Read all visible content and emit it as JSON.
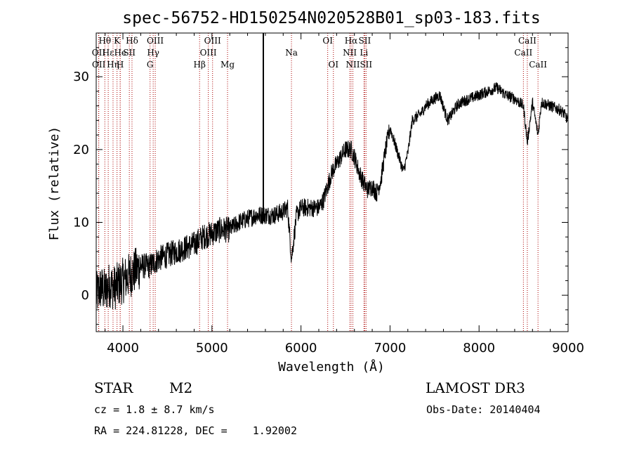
{
  "chart_data": {
    "type": "line",
    "title": "spec-56752-HD150254N020528B01_sp03-183.fits",
    "xlabel": "Wavelength (Å)",
    "ylabel": "Flux (relative)",
    "xlim": [
      3700,
      9000
    ],
    "ylim": [
      -5,
      36
    ],
    "xticks": [
      4000,
      5000,
      6000,
      7000,
      8000,
      9000
    ],
    "xtick_labels": [
      "4000",
      "5000",
      "6000",
      "7000",
      "8000",
      "9000"
    ],
    "yticks": [
      0,
      10,
      20,
      30
    ],
    "ytick_labels": [
      "0",
      "10",
      "20",
      "30"
    ],
    "grid": false,
    "series": [
      {
        "name": "spectrum",
        "color": "#000000",
        "x": [
          3700,
          3750,
          3800,
          3850,
          3900,
          3950,
          4000,
          4100,
          4200,
          4300,
          4400,
          4500,
          4600,
          4700,
          4800,
          4900,
          5000,
          5100,
          5200,
          5300,
          5400,
          5500,
          5600,
          5700,
          5800,
          5850,
          5893,
          5950,
          6000,
          6100,
          6200,
          6250,
          6300,
          6350,
          6400,
          6450,
          6500,
          6563,
          6600,
          6650,
          6700,
          6750,
          6800,
          6850,
          6900,
          6950,
          7000,
          7050,
          7100,
          7150,
          7200,
          7250,
          7300,
          7350,
          7400,
          7500,
          7560,
          7620,
          7650,
          7700,
          7750,
          7800,
          7900,
          8000,
          8100,
          8200,
          8300,
          8400,
          8498,
          8542,
          8600,
          8662,
          8700,
          8800,
          8900,
          8950,
          9000
        ],
        "values": [
          0,
          1,
          0.5,
          1.5,
          1,
          1.5,
          2,
          3,
          4,
          4,
          5,
          5.5,
          6,
          6.5,
          7,
          8,
          8.5,
          9,
          9,
          10,
          10.5,
          11,
          11,
          11,
          11.5,
          12,
          5,
          11,
          12,
          12,
          12,
          13,
          15,
          17,
          18,
          19,
          20,
          20,
          19,
          17,
          15.5,
          14.5,
          15,
          14,
          16,
          20,
          23,
          21,
          19,
          17,
          19.5,
          24,
          24.5,
          25,
          26,
          27,
          27.5,
          25,
          24,
          25,
          26,
          26.5,
          27,
          27.5,
          28,
          28.5,
          27.5,
          27,
          26,
          21,
          26.5,
          22,
          26.5,
          26,
          25.5,
          25,
          24
        ]
      }
    ],
    "lines": [
      {
        "label": "Hθ",
        "wavelength": 3797,
        "row": 1
      },
      {
        "label": "OII",
        "wavelength": 3727,
        "row": 2
      },
      {
        "label": "OII",
        "wavelength": 3729,
        "row": 3
      },
      {
        "label": "Hε",
        "wavelength": 3835,
        "row": 2
      },
      {
        "label": "Hη",
        "wavelength": 3889,
        "row": 3
      },
      {
        "label": "K",
        "wavelength": 3934,
        "row": 1
      },
      {
        "label": "He",
        "wavelength": 3970,
        "row": 2
      },
      {
        "label": "H",
        "wavelength": 3969,
        "row": 3
      },
      {
        "label": "SII",
        "wavelength": 4072,
        "row": 2
      },
      {
        "label": "Hδ",
        "wavelength": 4102,
        "row": 1
      },
      {
        "label": "OIII",
        "wavelength": 4363,
        "row": 1
      },
      {
        "label": "Hγ",
        "wavelength": 4340,
        "row": 2
      },
      {
        "label": "G",
        "wavelength": 4305,
        "row": 3
      },
      {
        "label": "Hβ",
        "wavelength": 4861,
        "row": 3
      },
      {
        "label": "OIII",
        "wavelength": 5007,
        "row": 1
      },
      {
        "label": "OIII",
        "wavelength": 4959,
        "row": 2
      },
      {
        "label": "Mg",
        "wavelength": 5175,
        "row": 3
      },
      {
        "label": "Na",
        "wavelength": 5893,
        "row": 2
      },
      {
        "label": "OI",
        "wavelength": 6300,
        "row": 1
      },
      {
        "label": "OI",
        "wavelength": 6364,
        "row": 3
      },
      {
        "label": "Hα",
        "wavelength": 6563,
        "row": 1
      },
      {
        "label": "NII",
        "wavelength": 6548,
        "row": 2
      },
      {
        "label": "NII",
        "wavelength": 6583,
        "row": 3
      },
      {
        "label": "SII",
        "wavelength": 6716,
        "row": 1
      },
      {
        "label": "Li",
        "wavelength": 6707,
        "row": 2
      },
      {
        "label": "SII",
        "wavelength": 6731,
        "row": 3
      },
      {
        "label": "CaII",
        "wavelength": 8542,
        "row": 1
      },
      {
        "label": "CaII",
        "wavelength": 8498,
        "row": 2
      },
      {
        "label": "CaII",
        "wavelength": 8662,
        "row": 3
      }
    ],
    "marker_line": {
      "wavelength": 5577,
      "color": "#000000"
    },
    "line_color": "#aa0000"
  },
  "info": {
    "class": "STAR",
    "subclass": "M2",
    "survey": "LAMOST DR3",
    "cz": "cz = 1.8 ± 8.7 km/s",
    "obs_date": "Obs-Date: 20140404",
    "coords": "RA = 224.81228, DEC =    1.92002"
  }
}
